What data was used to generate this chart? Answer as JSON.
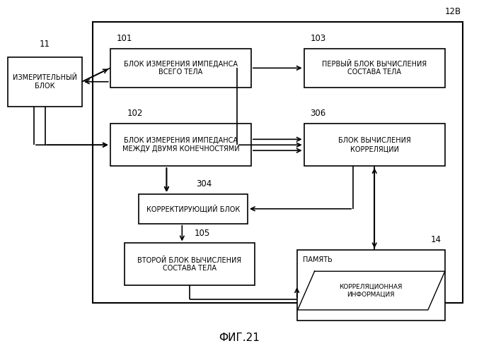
{
  "title": "ФИГ.21",
  "label_12b": "12В",
  "label_11": "11",
  "label_101": "101",
  "label_102": "102",
  "label_103": "103",
  "label_304": "304",
  "label_105": "105",
  "label_306": "306",
  "label_14": "14",
  "bg_color": "#ffffff",
  "line_color": "#000000",
  "font_size": 7.0
}
